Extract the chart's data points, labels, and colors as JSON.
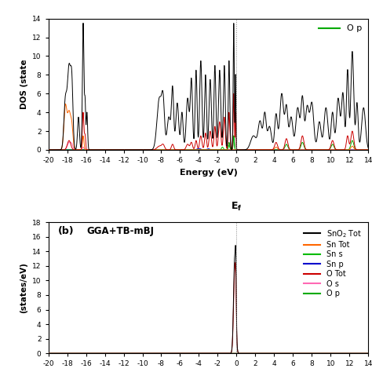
{
  "top_panel": {
    "xlabel": "Energy (eV)",
    "ylabel": "DOS (states",
    "xlim": [
      -20,
      14
    ],
    "ylim": [
      0,
      14
    ],
    "yticks": [
      0,
      2,
      4,
      6,
      8,
      10,
      12,
      14
    ],
    "xticks": [
      -20,
      -18,
      -16,
      -14,
      -12,
      -10,
      -8,
      -6,
      -4,
      -2,
      0,
      2,
      4,
      6,
      8,
      10,
      12,
      14
    ]
  },
  "bottom_panel": {
    "ylabel": "(states/eV)",
    "xlim": [
      -20,
      14
    ],
    "ylim": [
      0,
      18
    ],
    "yticks": [
      0,
      2,
      4,
      6,
      8,
      10,
      12,
      14,
      16,
      18
    ],
    "xticks": [
      -20,
      -18,
      -16,
      -14,
      -12,
      -10,
      -8,
      -6,
      -4,
      -2,
      0,
      2,
      4,
      6,
      8,
      10,
      12,
      14
    ],
    "legend_entries": [
      {
        "label": "SnO$_2$ Tot",
        "color": "#000000"
      },
      {
        "label": "Sn Tot",
        "color": "#ff6600"
      },
      {
        "label": "Sn s",
        "color": "#00bb00"
      },
      {
        "label": "Sn p",
        "color": "#0000cc"
      },
      {
        "label": "O Tot",
        "color": "#cc0000"
      },
      {
        "label": "O s",
        "color": "#ff69b4"
      },
      {
        "label": "O p",
        "color": "#00aa00"
      }
    ]
  },
  "colors": {
    "sno2_tot": "#000000",
    "sn_tot": "#ff6600",
    "sn_s": "#00bb00",
    "sn_p": "#0000cc",
    "o_tot": "#cc0000",
    "o_s": "#ff69b4",
    "o_p": "#00aa00"
  },
  "background": "#ffffff"
}
